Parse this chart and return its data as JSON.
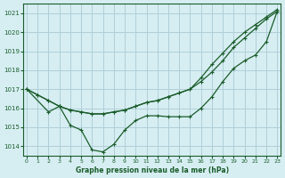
{
  "title": "Graphe pression niveau de la mer (hPa)",
  "bg_color": "#d6eef2",
  "grid_color": "#b0cfd8",
  "line_color": "#1a5c2a",
  "marker_color": "#1a5c2a",
  "xlim": [
    -0.3,
    23.3
  ],
  "ylim": [
    1013.5,
    1021.5
  ],
  "yticks": [
    1014,
    1015,
    1016,
    1017,
    1018,
    1019,
    1020,
    1021
  ],
  "xticks": [
    0,
    1,
    2,
    3,
    4,
    5,
    6,
    7,
    8,
    9,
    10,
    11,
    12,
    13,
    14,
    15,
    16,
    17,
    18,
    19,
    20,
    21,
    22,
    23
  ],
  "series1_x": [
    0,
    1,
    2,
    3,
    4,
    5,
    6,
    7,
    8,
    9,
    10,
    11,
    12,
    13,
    14,
    15,
    16,
    17,
    18,
    19,
    20,
    21,
    22,
    23
  ],
  "series1_y": [
    1017.0,
    1016.7,
    1016.4,
    1016.1,
    1015.9,
    1015.8,
    1015.7,
    1015.7,
    1015.8,
    1015.9,
    1016.1,
    1016.3,
    1016.4,
    1016.6,
    1016.8,
    1017.0,
    1017.4,
    1017.9,
    1018.5,
    1019.2,
    1019.7,
    1020.2,
    1020.7,
    1021.1
  ],
  "series2_x": [
    0,
    1,
    2,
    3,
    4,
    5,
    6,
    7,
    8,
    9,
    10,
    11,
    12,
    13,
    14,
    15,
    16,
    17,
    18,
    19,
    20,
    21,
    22,
    23
  ],
  "series2_y": [
    1017.0,
    1016.7,
    1016.4,
    1016.1,
    1015.9,
    1015.8,
    1015.7,
    1015.7,
    1015.8,
    1015.9,
    1016.1,
    1016.3,
    1016.4,
    1016.6,
    1016.8,
    1017.0,
    1017.6,
    1018.3,
    1018.9,
    1019.5,
    1020.0,
    1020.4,
    1020.8,
    1021.2
  ],
  "series3_x": [
    0,
    2,
    3,
    4,
    5,
    6,
    7,
    8,
    9,
    10,
    11,
    12,
    13,
    14,
    15,
    16,
    17,
    18,
    19,
    20,
    21,
    22,
    23
  ],
  "series3_y": [
    1017.0,
    1015.8,
    1016.1,
    1015.1,
    1014.85,
    1013.8,
    1013.7,
    1014.1,
    1014.85,
    1015.35,
    1015.6,
    1015.6,
    1015.55,
    1015.55,
    1015.55,
    1016.0,
    1016.6,
    1017.4,
    1018.1,
    1018.5,
    1018.8,
    1019.5,
    1021.1
  ]
}
